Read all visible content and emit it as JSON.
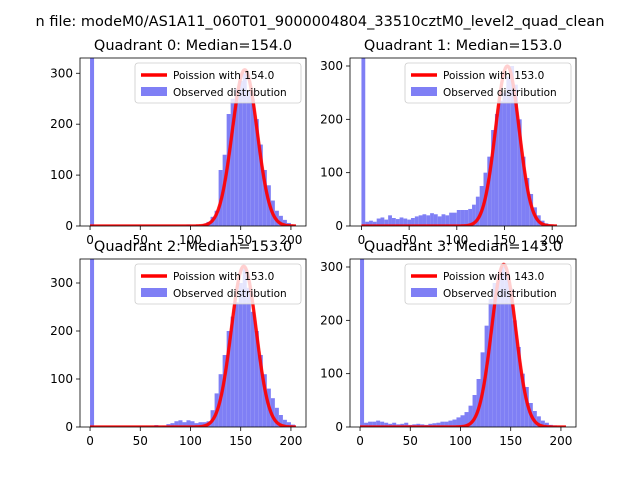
{
  "figure": {
    "suptitle": "n file: modeM0/AS1A11_060T01_9000004804_33510cztM0_level2_quad_clean"
  },
  "colors": {
    "hist": "#7f7ff5",
    "fit": "#ff0000",
    "axes": "#000000",
    "background": "#ffffff",
    "legend_border": "#cccccc"
  },
  "chart_data": [
    {
      "type": "bar",
      "title": "Quadrant 0: Median=154.0",
      "legend": [
        "Poission with 154.0",
        "Observed distribution"
      ],
      "legend_position": "upper-right",
      "xlim": [
        -10,
        215
      ],
      "ylim": [
        0,
        330
      ],
      "xticks": [
        0,
        50,
        100,
        150,
        200
      ],
      "yticks": [
        0,
        100,
        200,
        300
      ],
      "xtick_labels": [
        "0",
        "50",
        "100",
        "150",
        "200"
      ],
      "ytick_labels": [
        "0",
        "100",
        "200",
        "300"
      ],
      "fit_mean": 154.0,
      "fit_peak": 307,
      "bins": [
        {
          "x0": 0,
          "x1": 4,
          "v": 330
        },
        {
          "x0": 96,
          "x1": 100,
          "v": 3
        },
        {
          "x0": 104,
          "x1": 108,
          "v": 2
        },
        {
          "x0": 112,
          "x1": 116,
          "v": 4
        },
        {
          "x0": 116,
          "x1": 120,
          "v": 8
        },
        {
          "x0": 120,
          "x1": 124,
          "v": 18
        },
        {
          "x0": 124,
          "x1": 128,
          "v": 30
        },
        {
          "x0": 128,
          "x1": 132,
          "v": 110
        },
        {
          "x0": 132,
          "x1": 136,
          "v": 140
        },
        {
          "x0": 136,
          "x1": 140,
          "v": 220
        },
        {
          "x0": 140,
          "x1": 144,
          "v": 250
        },
        {
          "x0": 144,
          "x1": 148,
          "v": 270
        },
        {
          "x0": 148,
          "x1": 152,
          "v": 285
        },
        {
          "x0": 152,
          "x1": 156,
          "v": 300
        },
        {
          "x0": 156,
          "x1": 160,
          "v": 265
        },
        {
          "x0": 160,
          "x1": 164,
          "v": 250
        },
        {
          "x0": 164,
          "x1": 168,
          "v": 210
        },
        {
          "x0": 168,
          "x1": 172,
          "v": 160
        },
        {
          "x0": 172,
          "x1": 176,
          "v": 110
        },
        {
          "x0": 176,
          "x1": 180,
          "v": 80
        },
        {
          "x0": 180,
          "x1": 184,
          "v": 50
        },
        {
          "x0": 184,
          "x1": 188,
          "v": 30
        },
        {
          "x0": 188,
          "x1": 192,
          "v": 20
        },
        {
          "x0": 192,
          "x1": 196,
          "v": 12
        },
        {
          "x0": 196,
          "x1": 200,
          "v": 6
        },
        {
          "x0": 200,
          "x1": 204,
          "v": 3
        }
      ]
    },
    {
      "type": "bar",
      "title": "Quadrant 1: Median=153.0",
      "legend": [
        "Poission with 153.0",
        "Observed distribution"
      ],
      "legend_position": "upper-right",
      "xlim": [
        -12,
        225
      ],
      "ylim": [
        0,
        315
      ],
      "xticks": [
        0,
        50,
        100,
        150,
        200
      ],
      "yticks": [
        0,
        100,
        200,
        300
      ],
      "xtick_labels": [
        "0",
        "50",
        "100",
        "150",
        "200"
      ],
      "ytick_labels": [
        "0",
        "100",
        "200",
        "300"
      ],
      "fit_mean": 153.0,
      "fit_peak": 300,
      "bins": [
        {
          "x0": 0,
          "x1": 4,
          "v": 315
        },
        {
          "x0": 4,
          "x1": 8,
          "v": 8
        },
        {
          "x0": 8,
          "x1": 12,
          "v": 10
        },
        {
          "x0": 12,
          "x1": 16,
          "v": 8
        },
        {
          "x0": 16,
          "x1": 20,
          "v": 14
        },
        {
          "x0": 20,
          "x1": 24,
          "v": 16
        },
        {
          "x0": 24,
          "x1": 28,
          "v": 12
        },
        {
          "x0": 28,
          "x1": 32,
          "v": 20
        },
        {
          "x0": 32,
          "x1": 36,
          "v": 15
        },
        {
          "x0": 36,
          "x1": 40,
          "v": 13
        },
        {
          "x0": 40,
          "x1": 44,
          "v": 16
        },
        {
          "x0": 44,
          "x1": 48,
          "v": 14
        },
        {
          "x0": 48,
          "x1": 52,
          "v": 12
        },
        {
          "x0": 52,
          "x1": 56,
          "v": 15
        },
        {
          "x0": 56,
          "x1": 60,
          "v": 18
        },
        {
          "x0": 60,
          "x1": 64,
          "v": 20
        },
        {
          "x0": 64,
          "x1": 68,
          "v": 22
        },
        {
          "x0": 68,
          "x1": 72,
          "v": 20
        },
        {
          "x0": 72,
          "x1": 76,
          "v": 24
        },
        {
          "x0": 76,
          "x1": 80,
          "v": 22
        },
        {
          "x0": 80,
          "x1": 84,
          "v": 18
        },
        {
          "x0": 84,
          "x1": 88,
          "v": 22
        },
        {
          "x0": 88,
          "x1": 92,
          "v": 20
        },
        {
          "x0": 92,
          "x1": 96,
          "v": 25
        },
        {
          "x0": 96,
          "x1": 100,
          "v": 25
        },
        {
          "x0": 100,
          "x1": 104,
          "v": 30
        },
        {
          "x0": 104,
          "x1": 108,
          "v": 30
        },
        {
          "x0": 108,
          "x1": 112,
          "v": 30
        },
        {
          "x0": 112,
          "x1": 116,
          "v": 32
        },
        {
          "x0": 116,
          "x1": 120,
          "v": 40
        },
        {
          "x0": 120,
          "x1": 124,
          "v": 55
        },
        {
          "x0": 124,
          "x1": 128,
          "v": 75
        },
        {
          "x0": 128,
          "x1": 132,
          "v": 100
        },
        {
          "x0": 132,
          "x1": 136,
          "v": 130
        },
        {
          "x0": 136,
          "x1": 140,
          "v": 180
        },
        {
          "x0": 140,
          "x1": 144,
          "v": 210
        },
        {
          "x0": 144,
          "x1": 148,
          "v": 235
        },
        {
          "x0": 148,
          "x1": 152,
          "v": 250
        },
        {
          "x0": 152,
          "x1": 156,
          "v": 280
        },
        {
          "x0": 156,
          "x1": 160,
          "v": 300
        },
        {
          "x0": 160,
          "x1": 164,
          "v": 265
        },
        {
          "x0": 164,
          "x1": 168,
          "v": 200
        },
        {
          "x0": 168,
          "x1": 172,
          "v": 130
        },
        {
          "x0": 172,
          "x1": 176,
          "v": 90
        },
        {
          "x0": 176,
          "x1": 180,
          "v": 60
        },
        {
          "x0": 180,
          "x1": 184,
          "v": 35
        },
        {
          "x0": 184,
          "x1": 188,
          "v": 20
        },
        {
          "x0": 188,
          "x1": 192,
          "v": 10
        },
        {
          "x0": 192,
          "x1": 196,
          "v": 5
        },
        {
          "x0": 196,
          "x1": 200,
          "v": 3
        }
      ]
    },
    {
      "type": "bar",
      "title": "Quadrant 2: Median=153.0",
      "legend": [
        "Poission with 153.0",
        "Observed distribution"
      ],
      "legend_position": "upper-right",
      "xlim": [
        -10,
        215
      ],
      "ylim": [
        0,
        350
      ],
      "xticks": [
        0,
        50,
        100,
        150,
        200
      ],
      "yticks": [
        0,
        100,
        200,
        300
      ],
      "xtick_labels": [
        "0",
        "50",
        "100",
        "150",
        "200"
      ],
      "ytick_labels": [
        "0",
        "100",
        "200",
        "300"
      ],
      "fit_mean": 153.0,
      "fit_peak": 335,
      "bins": [
        {
          "x0": 0,
          "x1": 4,
          "v": 350
        },
        {
          "x0": 64,
          "x1": 68,
          "v": 4
        },
        {
          "x0": 72,
          "x1": 76,
          "v": 3
        },
        {
          "x0": 76,
          "x1": 80,
          "v": 6
        },
        {
          "x0": 80,
          "x1": 84,
          "v": 8
        },
        {
          "x0": 84,
          "x1": 88,
          "v": 12
        },
        {
          "x0": 88,
          "x1": 92,
          "v": 14
        },
        {
          "x0": 92,
          "x1": 96,
          "v": 10
        },
        {
          "x0": 96,
          "x1": 100,
          "v": 14
        },
        {
          "x0": 100,
          "x1": 104,
          "v": 12
        },
        {
          "x0": 104,
          "x1": 108,
          "v": 8
        },
        {
          "x0": 108,
          "x1": 112,
          "v": 10
        },
        {
          "x0": 112,
          "x1": 116,
          "v": 10
        },
        {
          "x0": 116,
          "x1": 120,
          "v": 12
        },
        {
          "x0": 120,
          "x1": 124,
          "v": 35
        },
        {
          "x0": 124,
          "x1": 128,
          "v": 70
        },
        {
          "x0": 128,
          "x1": 132,
          "v": 110
        },
        {
          "x0": 132,
          "x1": 136,
          "v": 150
        },
        {
          "x0": 136,
          "x1": 140,
          "v": 200
        },
        {
          "x0": 140,
          "x1": 144,
          "v": 230
        },
        {
          "x0": 144,
          "x1": 148,
          "v": 260
        },
        {
          "x0": 148,
          "x1": 152,
          "v": 300
        },
        {
          "x0": 152,
          "x1": 156,
          "v": 330
        },
        {
          "x0": 156,
          "x1": 160,
          "v": 290
        },
        {
          "x0": 160,
          "x1": 164,
          "v": 240
        },
        {
          "x0": 164,
          "x1": 168,
          "v": 200
        },
        {
          "x0": 168,
          "x1": 172,
          "v": 150
        },
        {
          "x0": 172,
          "x1": 176,
          "v": 110
        },
        {
          "x0": 176,
          "x1": 180,
          "v": 80
        },
        {
          "x0": 180,
          "x1": 184,
          "v": 60
        },
        {
          "x0": 184,
          "x1": 188,
          "v": 40
        },
        {
          "x0": 188,
          "x1": 192,
          "v": 25
        },
        {
          "x0": 192,
          "x1": 196,
          "v": 15
        },
        {
          "x0": 196,
          "x1": 200,
          "v": 10
        },
        {
          "x0": 200,
          "x1": 204,
          "v": 5
        }
      ]
    },
    {
      "type": "bar",
      "title": "Quadrant 3: Median=143.0",
      "legend": [
        "Poission with 143.0",
        "Observed distribution"
      ],
      "legend_position": "upper-right",
      "xlim": [
        -10,
        215
      ],
      "ylim": [
        0,
        315
      ],
      "xticks": [
        0,
        50,
        100,
        150,
        200
      ],
      "yticks": [
        0,
        100,
        200,
        300
      ],
      "xtick_labels": [
        "0",
        "50",
        "100",
        "150",
        "200"
      ],
      "ytick_labels": [
        "0",
        "100",
        "200",
        "300"
      ],
      "fit_mean": 143.0,
      "fit_peak": 305,
      "bins": [
        {
          "x0": 0,
          "x1": 4,
          "v": 315
        },
        {
          "x0": 4,
          "x1": 8,
          "v": 8
        },
        {
          "x0": 8,
          "x1": 12,
          "v": 10
        },
        {
          "x0": 12,
          "x1": 16,
          "v": 10
        },
        {
          "x0": 16,
          "x1": 20,
          "v": 12
        },
        {
          "x0": 20,
          "x1": 24,
          "v": 10
        },
        {
          "x0": 24,
          "x1": 28,
          "v": 8
        },
        {
          "x0": 28,
          "x1": 32,
          "v": 6
        },
        {
          "x0": 32,
          "x1": 36,
          "v": 8
        },
        {
          "x0": 36,
          "x1": 40,
          "v": 5
        },
        {
          "x0": 40,
          "x1": 44,
          "v": 6
        },
        {
          "x0": 44,
          "x1": 48,
          "v": 8
        },
        {
          "x0": 48,
          "x1": 52,
          "v": 4
        },
        {
          "x0": 52,
          "x1": 56,
          "v": 5
        },
        {
          "x0": 56,
          "x1": 60,
          "v": 6
        },
        {
          "x0": 60,
          "x1": 64,
          "v": 5
        },
        {
          "x0": 64,
          "x1": 68,
          "v": 4
        },
        {
          "x0": 68,
          "x1": 72,
          "v": 6
        },
        {
          "x0": 72,
          "x1": 76,
          "v": 7
        },
        {
          "x0": 76,
          "x1": 80,
          "v": 8
        },
        {
          "x0": 80,
          "x1": 84,
          "v": 10
        },
        {
          "x0": 84,
          "x1": 88,
          "v": 10
        },
        {
          "x0": 88,
          "x1": 92,
          "v": 12
        },
        {
          "x0": 92,
          "x1": 96,
          "v": 14
        },
        {
          "x0": 96,
          "x1": 100,
          "v": 18
        },
        {
          "x0": 100,
          "x1": 104,
          "v": 22
        },
        {
          "x0": 104,
          "x1": 108,
          "v": 28
        },
        {
          "x0": 108,
          "x1": 112,
          "v": 40
        },
        {
          "x0": 112,
          "x1": 116,
          "v": 60
        },
        {
          "x0": 116,
          "x1": 120,
          "v": 90
        },
        {
          "x0": 120,
          "x1": 124,
          "v": 140
        },
        {
          "x0": 124,
          "x1": 128,
          "v": 190
        },
        {
          "x0": 128,
          "x1": 132,
          "v": 240
        },
        {
          "x0": 132,
          "x1": 136,
          "v": 270
        },
        {
          "x0": 136,
          "x1": 140,
          "v": 285
        },
        {
          "x0": 140,
          "x1": 144,
          "v": 300
        },
        {
          "x0": 144,
          "x1": 148,
          "v": 290
        },
        {
          "x0": 148,
          "x1": 152,
          "v": 260
        },
        {
          "x0": 152,
          "x1": 156,
          "v": 200
        },
        {
          "x0": 156,
          "x1": 160,
          "v": 150
        },
        {
          "x0": 160,
          "x1": 164,
          "v": 100
        },
        {
          "x0": 164,
          "x1": 168,
          "v": 75
        },
        {
          "x0": 168,
          "x1": 172,
          "v": 45
        },
        {
          "x0": 172,
          "x1": 176,
          "v": 30
        },
        {
          "x0": 176,
          "x1": 180,
          "v": 20
        },
        {
          "x0": 180,
          "x1": 184,
          "v": 12
        },
        {
          "x0": 184,
          "x1": 188,
          "v": 8
        },
        {
          "x0": 188,
          "x1": 192,
          "v": 4
        },
        {
          "x0": 192,
          "x1": 196,
          "v": 3
        }
      ]
    }
  ]
}
